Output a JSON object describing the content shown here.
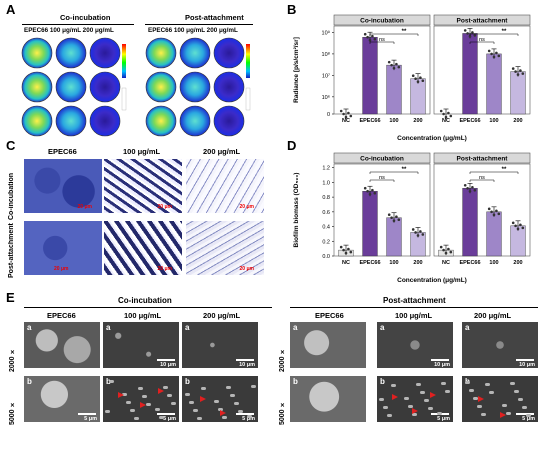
{
  "panels": {
    "A": "A",
    "B": "B",
    "C": "C",
    "D": "D",
    "E": "E"
  },
  "panelA": {
    "group1": "Co-incubation",
    "group2": "Post-attachment",
    "cols1": "EPEC66  100 μg/mL  200 μg/mL",
    "cols2": "EPEC66  100 μg/mL  200 μg/mL"
  },
  "panelB": {
    "facets": [
      "Co-incubation",
      "Post-attachment"
    ],
    "ylabel": "Radiance [p/s/cm²/sr]",
    "xlabel": "Concentration (μg/mL)",
    "categories": [
      "NC",
      "EPEC66",
      "100",
      "200"
    ],
    "yticks": [
      "0",
      "10⁶",
      "10⁷",
      "10⁸",
      "10⁹"
    ],
    "sig_top": "**",
    "sig_mid": "ns"
  },
  "panelC": {
    "cols": [
      "EPEC66",
      "100 μg/mL",
      "200 μg/mL"
    ],
    "rows": [
      "Co-incubation",
      "Post-attachment"
    ],
    "scale": "20 μm"
  },
  "panelD": {
    "facets": [
      "Co-incubation",
      "Post-attachment"
    ],
    "ylabel": "Biofilm biomass (OD₅₉₀)",
    "xlabel": "Concentration (μg/mL)",
    "categories": [
      "NC",
      "EPEC66",
      "100",
      "200"
    ],
    "yticks": [
      "0.0",
      "0.2",
      "0.4",
      "0.6",
      "0.8",
      "1.0",
      "1.2"
    ],
    "sig_top": "**",
    "sig_mid": "ns"
  },
  "panelE": {
    "group1": "Co-incubation",
    "group2": "Post-attachment",
    "cols": [
      "EPEC66",
      "100 μg/mL",
      "200 μg/mL"
    ],
    "rows": [
      "2000 ×",
      "5000 ×"
    ],
    "tag_a": "a",
    "tag_b": "b",
    "scale_a": "10 μm",
    "scale_b": "5 μm"
  },
  "chart_data": [
    {
      "type": "bar",
      "title": "Co-incubation",
      "ylabel": "Radiance [p/s/cm²/sr]",
      "xlabel": "Concentration (μg/mL)",
      "yscale": "log",
      "categories": [
        "NC",
        "EPEC66",
        "100",
        "200"
      ],
      "values": [
        1000,
        600000000,
        30000000,
        7000000
      ],
      "colors": [
        "#e6e6e6",
        "#6a3d9a",
        "#9e86c8",
        "#c5b8e0"
      ]
    },
    {
      "type": "bar",
      "title": "Post-attachment",
      "ylabel": "Radiance [p/s/cm²/sr]",
      "xlabel": "Concentration (μg/mL)",
      "yscale": "log",
      "categories": [
        "NC",
        "EPEC66",
        "100",
        "200"
      ],
      "values": [
        1000,
        900000000,
        100000000,
        15000000
      ],
      "colors": [
        "#e6e6e6",
        "#6a3d9a",
        "#9e86c8",
        "#c5b8e0"
      ]
    },
    {
      "type": "bar",
      "title": "Co-incubation",
      "ylabel": "Biofilm biomass (OD₅₉₀)",
      "xlabel": "Concentration (μg/mL)",
      "ylim": [
        0,
        1.2
      ],
      "categories": [
        "NC",
        "EPEC66",
        "100",
        "200"
      ],
      "values": [
        0.08,
        0.88,
        0.52,
        0.32
      ],
      "colors": [
        "#e6e6e6",
        "#6a3d9a",
        "#9e86c8",
        "#c5b8e0"
      ]
    },
    {
      "type": "bar",
      "title": "Post-attachment",
      "ylabel": "Biofilm biomass (OD₅₉₀)",
      "xlabel": "Concentration (μg/mL)",
      "ylim": [
        0,
        1.2
      ],
      "categories": [
        "NC",
        "EPEC66",
        "100",
        "200"
      ],
      "values": [
        0.08,
        0.92,
        0.6,
        0.41
      ],
      "colors": [
        "#e6e6e6",
        "#6a3d9a",
        "#9e86c8",
        "#c5b8e0"
      ]
    }
  ]
}
